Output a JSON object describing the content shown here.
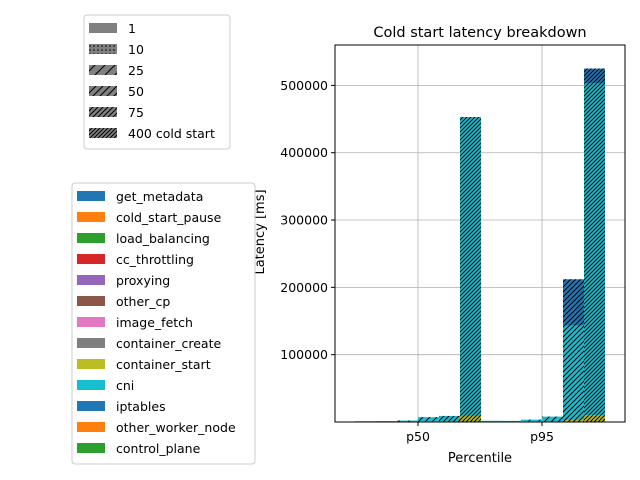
{
  "chart_data": {
    "type": "bar",
    "title": "Cold start latency breakdown",
    "xlabel": "Percentile",
    "ylabel": "Latency [ms]",
    "categories": [
      "p50",
      "p95"
    ],
    "ylim": [
      0,
      560000
    ],
    "yticks": [
      100000,
      200000,
      300000,
      400000,
      500000
    ],
    "grid": true,
    "stacked": true,
    "concurrency_legend": {
      "placement": "upper-left",
      "entries": [
        {
          "label": "1",
          "hatch": "none"
        },
        {
          "label": "10",
          "hatch": "dots"
        },
        {
          "label": "25",
          "hatch": "slash-sparse"
        },
        {
          "label": "50",
          "hatch": "slash-medium"
        },
        {
          "label": "75",
          "hatch": "slash-dense"
        },
        {
          "label": "400 cold start",
          "hatch": "slash-densest"
        }
      ]
    },
    "component_legend": {
      "placement": "lower-left",
      "entries": [
        {
          "label": "get_metadata",
          "color": "#1f77b4"
        },
        {
          "label": "cold_start_pause",
          "color": "#ff7f0e"
        },
        {
          "label": "load_balancing",
          "color": "#2ca02c"
        },
        {
          "label": "cc_throttling",
          "color": "#d62728"
        },
        {
          "label": "proxying",
          "color": "#9467bd"
        },
        {
          "label": "other_cp",
          "color": "#8c564b"
        },
        {
          "label": "image_fetch",
          "color": "#e377c2"
        },
        {
          "label": "container_create",
          "color": "#7f7f7f"
        },
        {
          "label": "container_start",
          "color": "#bcbd22"
        },
        {
          "label": "cni",
          "color": "#17becf"
        },
        {
          "label": "iptables",
          "color": "#1f77b4"
        },
        {
          "label": "other_worker_node",
          "color": "#ff7f0e"
        },
        {
          "label": "control_plane",
          "color": "#2ca02c"
        }
      ]
    },
    "bars": [
      {
        "category": "p50",
        "concurrency": "1",
        "segments": [
          {
            "component": "cni",
            "value": 1200
          }
        ]
      },
      {
        "category": "p50",
        "concurrency": "10",
        "segments": [
          {
            "component": "container_start",
            "value": 600
          },
          {
            "component": "cni",
            "value": 700
          }
        ]
      },
      {
        "category": "p50",
        "concurrency": "25",
        "segments": [
          {
            "component": "container_start",
            "value": 800
          },
          {
            "component": "cni",
            "value": 1400
          }
        ]
      },
      {
        "category": "p50",
        "concurrency": "50",
        "segments": [
          {
            "component": "container_start",
            "value": 1200
          },
          {
            "component": "cni",
            "value": 6000
          }
        ]
      },
      {
        "category": "p50",
        "concurrency": "75",
        "segments": [
          {
            "component": "container_start",
            "value": 1500
          },
          {
            "component": "cni",
            "value": 7500
          }
        ]
      },
      {
        "category": "p50",
        "concurrency": "400 cold start",
        "segments": [
          {
            "component": "container_start",
            "value": 9000
          },
          {
            "component": "cni",
            "value": 444000
          }
        ]
      },
      {
        "category": "p95",
        "concurrency": "1",
        "segments": [
          {
            "component": "container_start",
            "value": 700
          },
          {
            "component": "cni",
            "value": 1100
          }
        ]
      },
      {
        "category": "p95",
        "concurrency": "10",
        "segments": [
          {
            "component": "container_start",
            "value": 800
          },
          {
            "component": "cni",
            "value": 900
          }
        ]
      },
      {
        "category": "p95",
        "concurrency": "25",
        "segments": [
          {
            "component": "container_start",
            "value": 1200
          },
          {
            "component": "cni",
            "value": 2300
          }
        ]
      },
      {
        "category": "p95",
        "concurrency": "50",
        "segments": [
          {
            "component": "container_start",
            "value": 1500
          },
          {
            "component": "cni",
            "value": 6500
          }
        ]
      },
      {
        "category": "p95",
        "concurrency": "75",
        "segments": [
          {
            "component": "container_start",
            "value": 3000
          },
          {
            "component": "cni",
            "value": 140000
          },
          {
            "component": "iptables",
            "value": 69000
          }
        ]
      },
      {
        "category": "p95",
        "concurrency": "400 cold start",
        "segments": [
          {
            "component": "container_start",
            "value": 10000
          },
          {
            "component": "cni",
            "value": 493000
          },
          {
            "component": "iptables",
            "value": 22000
          }
        ]
      }
    ]
  }
}
